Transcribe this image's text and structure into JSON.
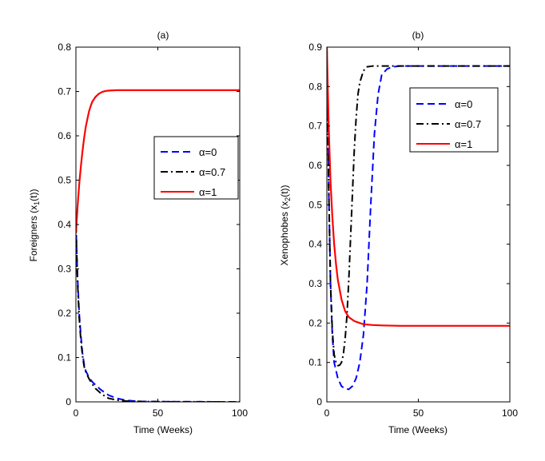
{
  "chart_data": [
    {
      "type": "line",
      "title": "(a)",
      "xlabel": "Time (Weeks)",
      "ylabel": "Foreigners (x",
      "ylabel_sub": "1",
      "ylabel_tail": "(t))",
      "xlim": [
        0,
        100
      ],
      "ylim": [
        0,
        0.8
      ],
      "xticks": [
        "0",
        "50",
        "100"
      ],
      "yticks": [
        "0",
        "0.1",
        "0.2",
        "0.3",
        "0.4",
        "0.5",
        "0.6",
        "0.7",
        "0.8"
      ],
      "grid": false,
      "legend_position": "center-right",
      "series": [
        {
          "name": "α=0",
          "color": "#0000ff",
          "dash": "dashed",
          "points": [
            [
              0,
              0.4
            ],
            [
              1,
              0.28
            ],
            [
              2,
              0.2
            ],
            [
              3,
              0.15
            ],
            [
              4,
              0.11
            ],
            [
              5,
              0.085
            ],
            [
              6,
              0.07
            ],
            [
              8,
              0.055
            ],
            [
              10,
              0.045
            ],
            [
              12,
              0.038
            ],
            [
              15,
              0.028
            ],
            [
              18,
              0.02
            ],
            [
              20,
              0.015
            ],
            [
              25,
              0.008
            ],
            [
              30,
              0.004
            ],
            [
              35,
              0.002
            ],
            [
              40,
              0.001
            ],
            [
              50,
              0.0005
            ],
            [
              70,
              0.0002
            ],
            [
              100,
              0.0
            ]
          ]
        },
        {
          "name": "α=0.7",
          "color": "#000000",
          "dash": "dashdot",
          "points": [
            [
              0,
              0.4
            ],
            [
              1,
              0.27
            ],
            [
              2,
              0.19
            ],
            [
              3,
              0.14
            ],
            [
              4,
              0.105
            ],
            [
              5,
              0.08
            ],
            [
              6,
              0.068
            ],
            [
              8,
              0.052
            ],
            [
              10,
              0.04
            ],
            [
              12,
              0.03
            ],
            [
              15,
              0.02
            ],
            [
              18,
              0.012
            ],
            [
              20,
              0.008
            ],
            [
              25,
              0.004
            ],
            [
              30,
              0.002
            ],
            [
              40,
              0.0008
            ],
            [
              60,
              0.0002
            ],
            [
              100,
              0.0
            ]
          ]
        },
        {
          "name": "α=1",
          "color": "#ff0000",
          "dash": "solid",
          "points": [
            [
              0,
              0.38
            ],
            [
              1,
              0.44
            ],
            [
              2,
              0.49
            ],
            [
              3,
              0.53
            ],
            [
              4,
              0.565
            ],
            [
              5,
              0.595
            ],
            [
              6,
              0.62
            ],
            [
              7,
              0.638
            ],
            [
              8,
              0.655
            ],
            [
              9,
              0.667
            ],
            [
              10,
              0.677
            ],
            [
              12,
              0.688
            ],
            [
              14,
              0.695
            ],
            [
              16,
              0.699
            ],
            [
              18,
              0.701
            ],
            [
              20,
              0.702
            ],
            [
              25,
              0.703
            ],
            [
              30,
              0.703
            ],
            [
              40,
              0.703
            ],
            [
              60,
              0.703
            ],
            [
              80,
              0.703
            ],
            [
              100,
              0.703
            ]
          ]
        }
      ]
    },
    {
      "type": "line",
      "title": "(b)",
      "xlabel": "Time (Weeks)",
      "ylabel": "Xenophobes (x",
      "ylabel_sub": "2",
      "ylabel_tail": "(t))",
      "xlim": [
        0,
        100
      ],
      "ylim": [
        0,
        0.9
      ],
      "xticks": [
        "0",
        "50",
        "100"
      ],
      "yticks": [
        "0",
        "0.1",
        "0.2",
        "0.3",
        "0.4",
        "0.5",
        "0.6",
        "0.7",
        "0.8",
        "0.9"
      ],
      "grid": false,
      "legend_position": "top-right",
      "series": [
        {
          "name": "α=0",
          "color": "#0000ff",
          "dash": "dashed",
          "points": [
            [
              0,
              0.9
            ],
            [
              1,
              0.55
            ],
            [
              2,
              0.3
            ],
            [
              3,
              0.17
            ],
            [
              4,
              0.1
            ],
            [
              6,
              0.06
            ],
            [
              8,
              0.04
            ],
            [
              10,
              0.033
            ],
            [
              12,
              0.032
            ],
            [
              14,
              0.04
            ],
            [
              16,
              0.06
            ],
            [
              18,
              0.1
            ],
            [
              20,
              0.17
            ],
            [
              22,
              0.3
            ],
            [
              24,
              0.5
            ],
            [
              26,
              0.68
            ],
            [
              28,
              0.78
            ],
            [
              30,
              0.83
            ],
            [
              33,
              0.845
            ],
            [
              36,
              0.85
            ],
            [
              40,
              0.852
            ],
            [
              50,
              0.852
            ],
            [
              60,
              0.852
            ],
            [
              80,
              0.852
            ],
            [
              100,
              0.852
            ]
          ]
        },
        {
          "name": "α=0.7",
          "color": "#000000",
          "dash": "dashdot",
          "points": [
            [
              0,
              0.9
            ],
            [
              1,
              0.55
            ],
            [
              2,
              0.3
            ],
            [
              3,
              0.18
            ],
            [
              4,
              0.12
            ],
            [
              5,
              0.1
            ],
            [
              6,
              0.092
            ],
            [
              7,
              0.093
            ],
            [
              8,
              0.1
            ],
            [
              9,
              0.12
            ],
            [
              10,
              0.16
            ],
            [
              11,
              0.22
            ],
            [
              12,
              0.31
            ],
            [
              13,
              0.42
            ],
            [
              14,
              0.53
            ],
            [
              15,
              0.64
            ],
            [
              16,
              0.72
            ],
            [
              17,
              0.78
            ],
            [
              18,
              0.81
            ],
            [
              20,
              0.84
            ],
            [
              22,
              0.85
            ],
            [
              25,
              0.852
            ],
            [
              30,
              0.852
            ],
            [
              50,
              0.852
            ],
            [
              100,
              0.852
            ]
          ]
        },
        {
          "name": "α=1",
          "color": "#ff0000",
          "dash": "solid",
          "points": [
            [
              0,
              0.9
            ],
            [
              1,
              0.7
            ],
            [
              2,
              0.56
            ],
            [
              3,
              0.47
            ],
            [
              4,
              0.4
            ],
            [
              5,
              0.35
            ],
            [
              6,
              0.31
            ],
            [
              8,
              0.26
            ],
            [
              10,
              0.23
            ],
            [
              12,
              0.215
            ],
            [
              15,
              0.205
            ],
            [
              18,
              0.2
            ],
            [
              20,
              0.197
            ],
            [
              25,
              0.195
            ],
            [
              30,
              0.194
            ],
            [
              40,
              0.193
            ],
            [
              60,
              0.193
            ],
            [
              80,
              0.193
            ],
            [
              100,
              0.193
            ]
          ]
        }
      ]
    }
  ]
}
